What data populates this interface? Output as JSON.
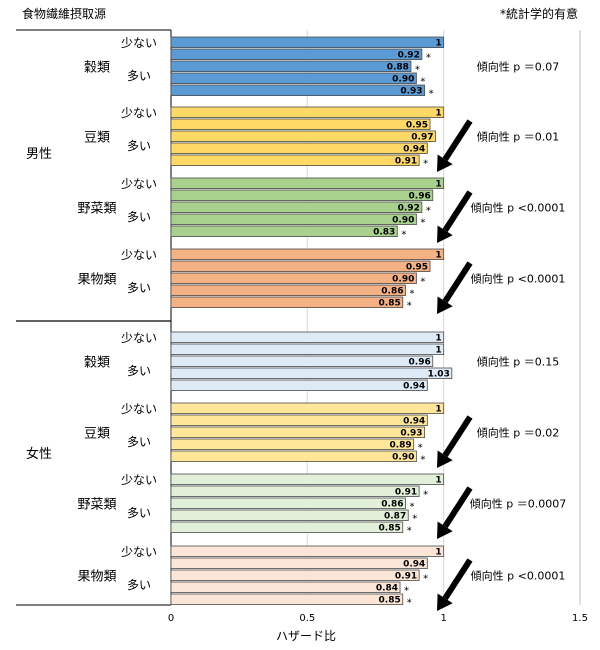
{
  "header": {
    "title": "食物繊維摂取源",
    "note": "*統計学的有意"
  },
  "chart_data": {
    "type": "bar",
    "orientation": "horizontal",
    "xlabel": "ハザード比",
    "xlim": [
      0,
      1.5
    ],
    "xticks": [
      "0",
      "0.5",
      "1",
      "1.5"
    ],
    "gridlines": "vertical",
    "low_label": "少ない",
    "high_label": "多い",
    "sexes": [
      {
        "label": "男性",
        "groups": [
          {
            "label": "穀類",
            "color": "#5b9bd5",
            "trend": "傾向性 p ＝0.07",
            "arrow": false,
            "values": [
              1,
              0.92,
              0.88,
              0.9,
              0.93
            ],
            "labels": [
              "1",
              "0.92",
              "0.88",
              "0.90",
              "0.93"
            ],
            "sig": [
              false,
              true,
              true,
              true,
              true
            ]
          },
          {
            "label": "豆類",
            "color": "#ffd966",
            "trend": "傾向性 p ＝0.01",
            "arrow": true,
            "values": [
              1,
              0.95,
              0.97,
              0.94,
              0.91
            ],
            "labels": [
              "1",
              "0.95",
              "0.97",
              "0.94",
              "0.91"
            ],
            "sig": [
              false,
              false,
              false,
              false,
              true
            ]
          },
          {
            "label": "野菜類",
            "color": "#a9d18e",
            "trend": "傾向性 p <0.0001",
            "arrow": true,
            "values": [
              1,
              0.96,
              0.92,
              0.9,
              0.83
            ],
            "labels": [
              "1",
              "0.96",
              "0.92",
              "0.90",
              "0.83"
            ],
            "sig": [
              false,
              false,
              true,
              true,
              true
            ]
          },
          {
            "label": "果物類",
            "color": "#f4b183",
            "trend": "傾向性 p <0.0001",
            "arrow": true,
            "values": [
              1,
              0.95,
              0.9,
              0.86,
              0.85
            ],
            "labels": [
              "1",
              "0.95",
              "0.90",
              "0.86",
              "0.85"
            ],
            "sig": [
              false,
              false,
              true,
              true,
              true
            ]
          }
        ]
      },
      {
        "label": "女性",
        "groups": [
          {
            "label": "穀類",
            "color": "#deebf7",
            "trend": "傾向性 p ＝0.15",
            "arrow": false,
            "values": [
              1,
              1,
              0.96,
              1.03,
              0.94
            ],
            "labels": [
              "1",
              "1",
              "0.96",
              "1.03",
              "0.94"
            ],
            "sig": [
              false,
              false,
              false,
              false,
              false
            ]
          },
          {
            "label": "豆類",
            "color": "#ffe699",
            "trend": "傾向性 p ＝0.02",
            "arrow": true,
            "values": [
              1,
              0.94,
              0.93,
              0.89,
              0.9
            ],
            "labels": [
              "1",
              "0.94",
              "0.93",
              "0.89",
              "0.90"
            ],
            "sig": [
              false,
              false,
              false,
              true,
              true
            ]
          },
          {
            "label": "野菜類",
            "color": "#e2f0d9",
            "trend": "傾向性 p ＝0.0007",
            "arrow": true,
            "values": [
              1,
              0.91,
              0.86,
              0.87,
              0.85
            ],
            "labels": [
              "1",
              "0.91",
              "0.86",
              "0.87",
              "0.85"
            ],
            "sig": [
              false,
              true,
              true,
              true,
              true
            ]
          },
          {
            "label": "果物類",
            "color": "#fbe5d6",
            "trend": "傾向性 p <0.0001",
            "arrow": true,
            "values": [
              1,
              0.94,
              0.91,
              0.84,
              0.85
            ],
            "labels": [
              "1",
              "0.94",
              "0.91",
              "0.84",
              "0.85"
            ],
            "sig": [
              false,
              false,
              true,
              true,
              true
            ]
          }
        ]
      }
    ]
  }
}
